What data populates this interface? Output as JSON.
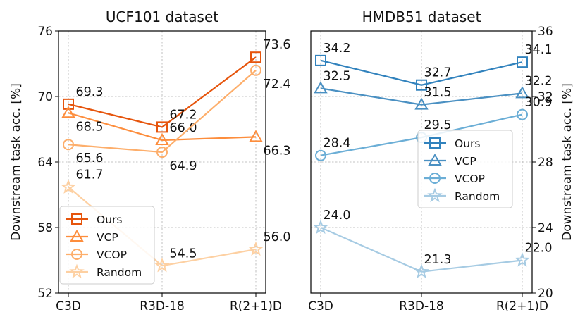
{
  "chart_data": [
    {
      "type": "line",
      "title": "UCF101 dataset",
      "xlabel": "",
      "ylabel": "Downstream task acc. [%]",
      "y_axis_side": "left",
      "ylim": [
        52,
        76
      ],
      "yticks": [
        52,
        58,
        64,
        70,
        76
      ],
      "categories": [
        "C3D",
        "R3D-18",
        "R(2+1)D"
      ],
      "grid": true,
      "legend_position": "lower-left",
      "series": [
        {
          "name": "Ours",
          "marker": "square",
          "color": "#e6550d",
          "values": [
            69.3,
            67.2,
            73.6
          ],
          "labels": [
            "69.3",
            "67.2",
            "73.6"
          ],
          "label_pos": [
            "above",
            "above",
            "above"
          ]
        },
        {
          "name": "VCP",
          "marker": "triangle",
          "color": "#fd8d3c",
          "values": [
            68.5,
            66.0,
            66.3
          ],
          "labels": [
            "68.5",
            "66.0",
            "66.3"
          ],
          "label_pos": [
            "below",
            "above",
            "below"
          ]
        },
        {
          "name": "VCOP",
          "marker": "circle",
          "color": "#fdae6b",
          "values": [
            65.6,
            64.9,
            72.4
          ],
          "labels": [
            "65.6",
            "64.9",
            "72.4"
          ],
          "label_pos": [
            "below",
            "below",
            "below"
          ]
        },
        {
          "name": "Random",
          "marker": "star",
          "color": "#fdd0a2",
          "values": [
            61.7,
            54.5,
            56.0
          ],
          "labels": [
            "61.7",
            "54.5",
            "56.0"
          ],
          "label_pos": [
            "above",
            "above",
            "above"
          ]
        }
      ]
    },
    {
      "type": "line",
      "title": "HMDB51 dataset",
      "xlabel": "",
      "ylabel": "Downstream task acc. [%]",
      "y_axis_side": "right",
      "ylim": [
        20,
        36
      ],
      "yticks": [
        20,
        24,
        28,
        32,
        36
      ],
      "categories": [
        "C3D",
        "R3D-18",
        "R(2+1)D"
      ],
      "grid": true,
      "legend_position": "center-right",
      "series": [
        {
          "name": "Ours",
          "marker": "square",
          "color": "#3182bd",
          "values": [
            34.2,
            32.7,
            34.1
          ],
          "labels": [
            "34.2",
            "32.7",
            "34.1"
          ],
          "label_pos": [
            "above",
            "above",
            "above"
          ]
        },
        {
          "name": "VCP",
          "marker": "triangle",
          "color": "#4a90c2",
          "values": [
            32.5,
            31.5,
            32.2
          ],
          "labels": [
            "32.5",
            "31.5",
            "32.2"
          ],
          "label_pos": [
            "above",
            "above",
            "above"
          ]
        },
        {
          "name": "VCOP",
          "marker": "circle",
          "color": "#6baed6",
          "values": [
            28.4,
            29.5,
            30.9
          ],
          "labels": [
            "28.4",
            "29.5",
            "30.9"
          ],
          "label_pos": [
            "above",
            "above",
            "above"
          ]
        },
        {
          "name": "Random",
          "marker": "star",
          "color": "#a6cbe3",
          "values": [
            24.0,
            21.3,
            22.0
          ],
          "labels": [
            "24.0",
            "21.3",
            "22.0"
          ],
          "label_pos": [
            "above",
            "above",
            "above"
          ]
        }
      ]
    }
  ]
}
